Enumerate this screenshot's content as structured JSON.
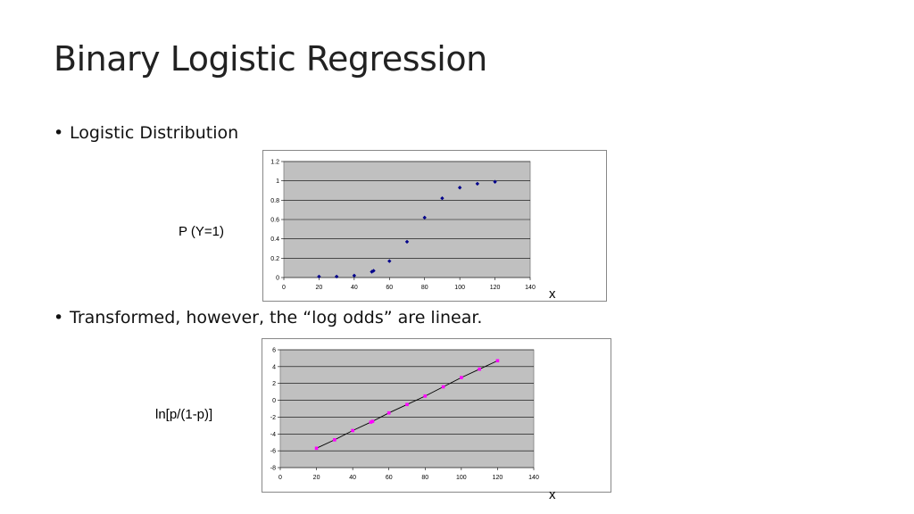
{
  "slide": {
    "title": "Binary Logistic Regression",
    "bullets": [
      "Logistic Distribution",
      "Transformed, however, the “log odds” are linear."
    ],
    "bullet_symbol": "•"
  },
  "captions": {
    "chart1_y": "P (Y=1)",
    "chart1_x": "x",
    "chart2_y": "ln[p/(1-p)]",
    "chart2_x": "x"
  },
  "chart_data": [
    {
      "type": "scatter",
      "title": "",
      "xlabel": "x",
      "ylabel": "P (Y=1)",
      "xlim": [
        0,
        140
      ],
      "ylim": [
        0,
        1.2
      ],
      "x_ticks": [
        "0",
        "20",
        "40",
        "60",
        "80",
        "100",
        "120",
        "140"
      ],
      "y_ticks": [
        "0",
        "0.2",
        "0.4",
        "0.6",
        "0.8",
        "1",
        "1.2"
      ],
      "grid": true,
      "plot_background": "#c0c0c0",
      "series": [
        {
          "color": "#00008b",
          "points": [
            {
              "x": 20,
              "y": 0.01
            },
            {
              "x": 30,
              "y": 0.01
            },
            {
              "x": 40,
              "y": 0.02
            },
            {
              "x": 50,
              "y": 0.06
            },
            {
              "x": 51,
              "y": 0.07
            },
            {
              "x": 60,
              "y": 0.17
            },
            {
              "x": 70,
              "y": 0.37
            },
            {
              "x": 80,
              "y": 0.62
            },
            {
              "x": 90,
              "y": 0.82
            },
            {
              "x": 100,
              "y": 0.93
            },
            {
              "x": 110,
              "y": 0.97
            },
            {
              "x": 120,
              "y": 0.99
            }
          ]
        }
      ]
    },
    {
      "type": "line",
      "title": "",
      "xlabel": "x",
      "ylabel": "ln[p/(1-p)]",
      "xlim": [
        0,
        140
      ],
      "ylim": [
        -8,
        6
      ],
      "x_ticks": [
        "0",
        "20",
        "40",
        "60",
        "80",
        "100",
        "120",
        "140"
      ],
      "y_ticks": [
        "-8",
        "-6",
        "-4",
        "-2",
        "0",
        "2",
        "4",
        "6"
      ],
      "grid": true,
      "plot_background": "#c0c0c0",
      "series": [
        {
          "color": "#ff00ff",
          "line_color": "#000000",
          "points": [
            {
              "x": 20,
              "y": -5.7
            },
            {
              "x": 30,
              "y": -4.7
            },
            {
              "x": 40,
              "y": -3.6
            },
            {
              "x": 50,
              "y": -2.6
            },
            {
              "x": 51,
              "y": -2.5
            },
            {
              "x": 60,
              "y": -1.5
            },
            {
              "x": 70,
              "y": -0.5
            },
            {
              "x": 80,
              "y": 0.5
            },
            {
              "x": 90,
              "y": 1.6
            },
            {
              "x": 100,
              "y": 2.7
            },
            {
              "x": 110,
              "y": 3.7
            },
            {
              "x": 120,
              "y": 4.7
            }
          ]
        }
      ]
    }
  ]
}
